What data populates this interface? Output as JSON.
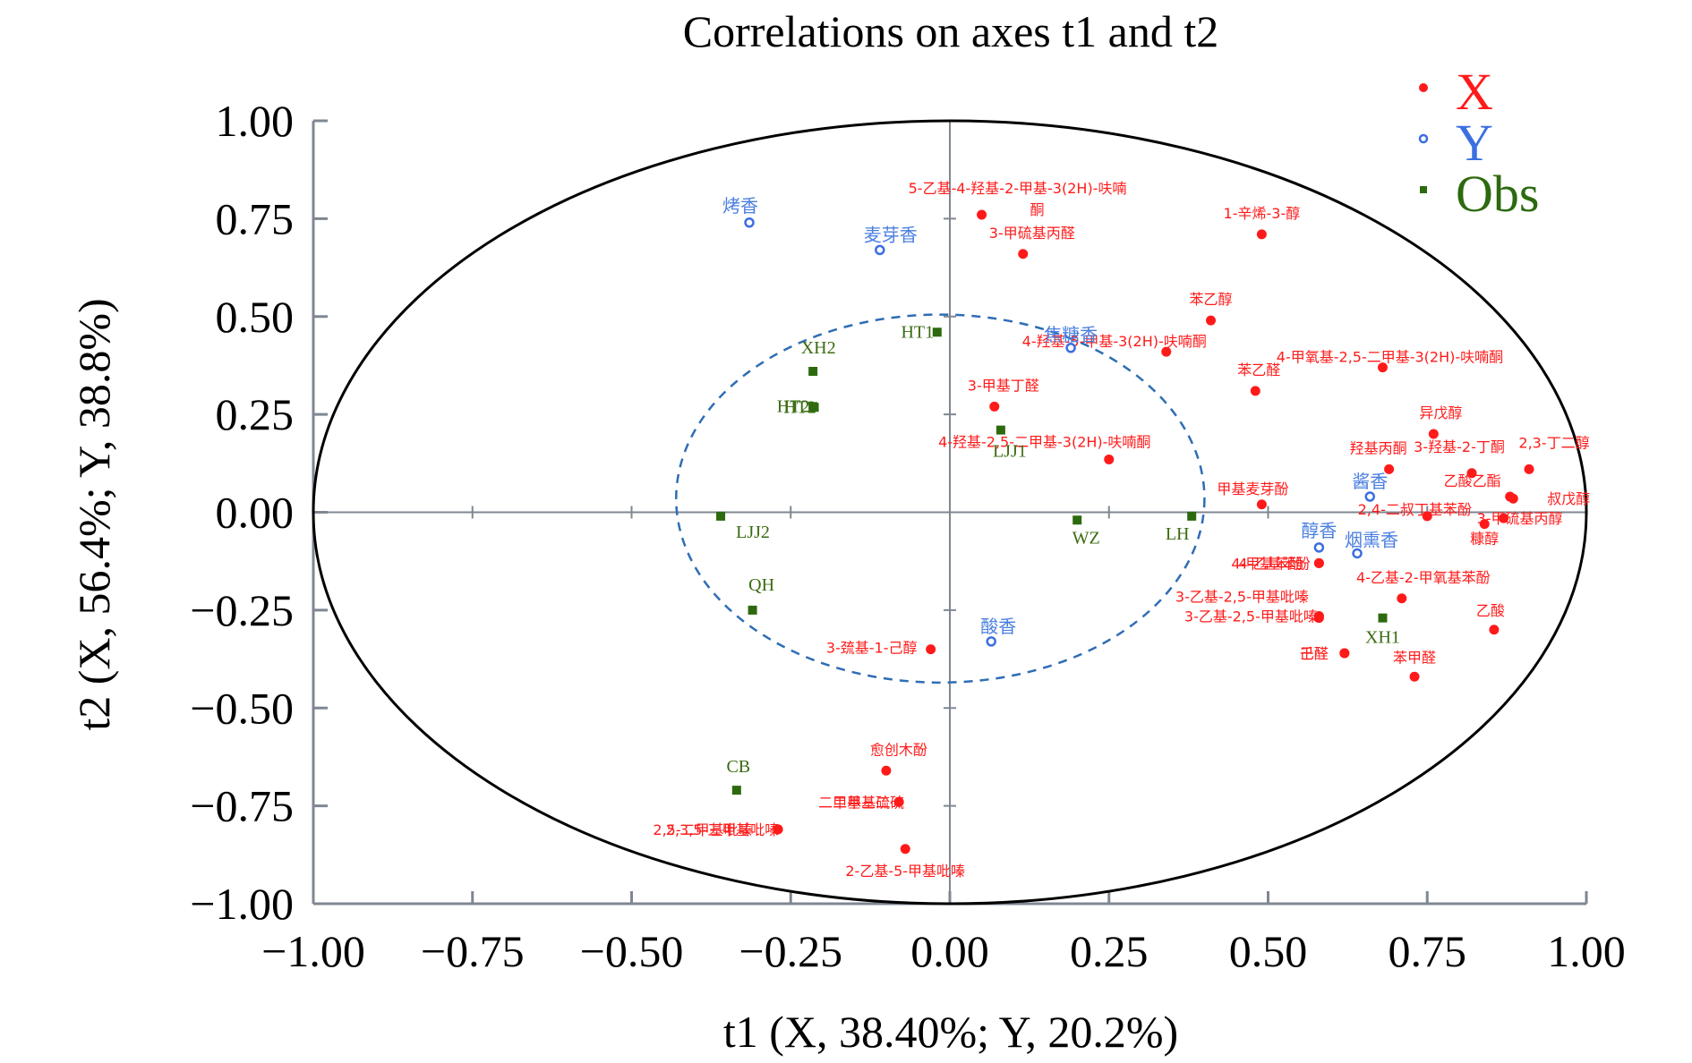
{
  "chart_data": {
    "type": "scatter",
    "title": "Correlations on axes t1 and t2",
    "xlabel": "t1 (X, 38.40%; Y, 20.2%)",
    "ylabel": "t2 (X, 56.4%; Y, 38.8%)",
    "xlim": [
      -1.0,
      1.0
    ],
    "ylim": [
      -1.0,
      1.0
    ],
    "x_ticks": [
      "−1.00",
      "−0.75",
      "−0.50",
      "−0.25",
      "0.00",
      "0.25",
      "0.50",
      "0.75",
      "1.00"
    ],
    "y_ticks": [
      "1.00",
      "0.75",
      "0.50",
      "0.25",
      "0.00",
      "−0.25",
      "−0.50",
      "−0.75",
      "−1.00"
    ],
    "x_tick_values": [
      -1.0,
      -0.75,
      -0.5,
      -0.25,
      0.0,
      0.25,
      0.5,
      0.75,
      1.0
    ],
    "y_tick_values": [
      1.0,
      0.75,
      0.5,
      0.25,
      0.0,
      -0.25,
      -0.5,
      -0.75,
      -1.0
    ],
    "grid": false,
    "legend_position": "top-right",
    "outer_circle": {
      "cx": 0,
      "cy": 0,
      "r": 1.0,
      "color": "#000000"
    },
    "inner_ellipse": {
      "cx": -0.015,
      "cy": 0.035,
      "rx": 0.415,
      "ry": 0.47,
      "color": "#2e6db4",
      "style": "dashed"
    },
    "series": [
      {
        "name": "X",
        "color": "#ff1a1a",
        "marker": "filled-circle",
        "points": [
          {
            "label": "5-乙基-4-羟基-2-甲基-3(2H)-呋喃酮",
            "x": 0.05,
            "y": 0.76
          },
          {
            "label": "1-辛烯-3-醇",
            "x": 0.49,
            "y": 0.71
          },
          {
            "label": "3-甲硫基丙醛",
            "x": 0.115,
            "y": 0.66
          },
          {
            "label": "苯乙醇",
            "x": 0.41,
            "y": 0.49
          },
          {
            "label": "4-羟基-5-甲基-3(2H)-呋喃酮",
            "x": 0.34,
            "y": 0.41
          },
          {
            "label": "4-甲氧基-2,5-二甲基-3(2H)-呋喃酮",
            "x": 0.68,
            "y": 0.37
          },
          {
            "label": "苯乙醛",
            "x": 0.48,
            "y": 0.31
          },
          {
            "label": "3-甲基丁醛",
            "x": 0.07,
            "y": 0.27
          },
          {
            "label": "异戊醇",
            "x": 0.76,
            "y": 0.2
          },
          {
            "label": "4-羟基-2,5-二甲基-3(2H)-呋喃酮",
            "x": 0.25,
            "y": 0.135
          },
          {
            "label": "2,3-丁二醇",
            "x": 0.91,
            "y": 0.11
          },
          {
            "label": "羟基丙酮",
            "x": 0.69,
            "y": 0.11
          },
          {
            "label": "3-羟基-2-丁酮",
            "x": 0.82,
            "y": 0.1
          },
          {
            "label": "乙酸乙酯",
            "x": 0.88,
            "y": 0.04
          },
          {
            "label": "叔戊醇",
            "x": 0.885,
            "y": 0.035
          },
          {
            "label": "甲基麦芽酚",
            "x": 0.49,
            "y": 0.02
          },
          {
            "label": "2,4-二叔丁基苯酚",
            "x": 0.75,
            "y": -0.01
          },
          {
            "label": "3-甲硫基丙醇",
            "x": 0.87,
            "y": -0.015
          },
          {
            "label": "糠醇",
            "x": 0.84,
            "y": -0.03
          },
          {
            "label": "4-乙基苯酚",
            "x": 0.58,
            "y": -0.13
          },
          {
            "label": "4-甲基苯酚",
            "x": 0.58,
            "y": -0.13
          },
          {
            "label": "4-乙基-2-甲氧基苯酚",
            "x": 0.71,
            "y": -0.22
          },
          {
            "label": "3-乙基-2,5-甲基吡嗪",
            "x": 0.58,
            "y": -0.265
          },
          {
            "label": "3-乙基-2,5-甲基吡嗪",
            "x": 0.58,
            "y": -0.27
          },
          {
            "label": "乙酸",
            "x": 0.855,
            "y": -0.3
          },
          {
            "label": "壬醛",
            "x": 0.62,
            "y": -0.36
          },
          {
            "label": "己醛",
            "x": 0.62,
            "y": -0.36
          },
          {
            "label": "苯甲醛",
            "x": 0.73,
            "y": -0.42
          },
          {
            "label": "3-巯基-1-己醇",
            "x": -0.03,
            "y": -0.35
          },
          {
            "label": "愈创木酚",
            "x": -0.1,
            "y": -0.66
          },
          {
            "label": "二甲基二硫",
            "x": -0.08,
            "y": -0.74
          },
          {
            "label": "二甲基三硫",
            "x": -0.08,
            "y": -0.74
          },
          {
            "label": "2,5-二甲基吡嗪",
            "x": -0.27,
            "y": -0.81
          },
          {
            "label": "2,3,5-三甲基吡嗪",
            "x": -0.27,
            "y": -0.81
          },
          {
            "label": "2-乙基-5-甲基吡嗪",
            "x": -0.07,
            "y": -0.86
          }
        ]
      },
      {
        "name": "Y",
        "color": "#3c6fe0",
        "marker": "open-circle",
        "points": [
          {
            "label": "烤香",
            "x": -0.315,
            "y": 0.74
          },
          {
            "label": "麦芽香",
            "x": -0.11,
            "y": 0.67
          },
          {
            "label": "焦糖香",
            "x": 0.19,
            "y": 0.42
          },
          {
            "label": "酱香",
            "x": 0.66,
            "y": 0.04
          },
          {
            "label": "醇香",
            "x": 0.58,
            "y": -0.09
          },
          {
            "label": "烟熏香",
            "x": 0.64,
            "y": -0.105
          },
          {
            "label": "酸香",
            "x": 0.065,
            "y": -0.33
          }
        ]
      },
      {
        "name": "Obs",
        "color": "#2d6a0f",
        "marker": "filled-square",
        "points": [
          {
            "label": "HT1",
            "x": -0.02,
            "y": 0.46
          },
          {
            "label": "XH2",
            "x": -0.215,
            "y": 0.36
          },
          {
            "label": "HT2",
            "x": -0.215,
            "y": 0.27
          },
          {
            "label": "HT2",
            "x": -0.213,
            "y": 0.268
          },
          {
            "label": "LJJ1",
            "x": 0.08,
            "y": 0.21
          },
          {
            "label": "LJJ2",
            "x": -0.36,
            "y": -0.01
          },
          {
            "label": "WZ",
            "x": 0.2,
            "y": -0.02
          },
          {
            "label": "LH",
            "x": 0.38,
            "y": -0.01
          },
          {
            "label": "QH",
            "x": -0.31,
            "y": -0.25
          },
          {
            "label": "XH1",
            "x": 0.68,
            "y": -0.27
          },
          {
            "label": "CB",
            "x": -0.335,
            "y": -0.71
          }
        ]
      }
    ]
  },
  "legend": [
    {
      "name": "X",
      "color": "#ff1a1a",
      "marker": "filled-circle"
    },
    {
      "name": "Y",
      "color": "#3c6fe0",
      "marker": "open-circle"
    },
    {
      "name": "Obs",
      "color": "#2d6a0f",
      "marker": "filled-square"
    }
  ]
}
